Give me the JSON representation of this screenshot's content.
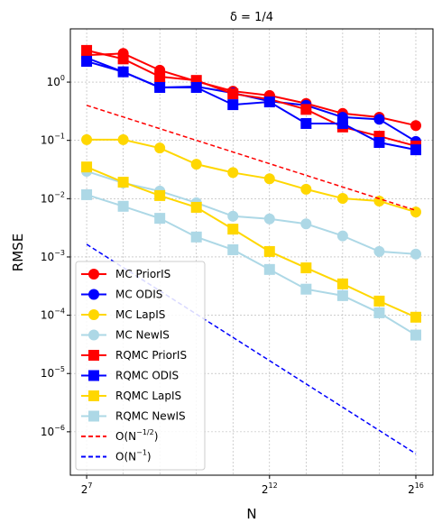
{
  "chart_data": {
    "type": "line",
    "title": "δ = 1/4",
    "xlabel": "N",
    "ylabel": "RMSE",
    "xlog": 2,
    "ylog": 10,
    "xlim": [
      94,
      90700
    ],
    "ylim": [
      1.8e-07,
      8.2
    ],
    "xticks": [
      {
        "value": 128,
        "label": "2^{7}"
      },
      {
        "value": 4096,
        "label": "2^{12}"
      },
      {
        "value": 65536,
        "label": "2^{16}"
      }
    ],
    "xgrid": [
      128,
      256,
      512,
      1024,
      2048,
      4096,
      8192,
      16384,
      32768,
      65536
    ],
    "yticks": [
      {
        "value": 1e-06,
        "label": "10^{−6}"
      },
      {
        "value": 1e-05,
        "label": "10^{−5}"
      },
      {
        "value": 0.0001,
        "label": "10^{−4}"
      },
      {
        "value": 0.001,
        "label": "10^{−3}"
      },
      {
        "value": 0.01,
        "label": "10^{−2}"
      },
      {
        "value": 0.1,
        "label": "10^{−1}"
      },
      {
        "value": 1,
        "label": "10^{0}"
      }
    ],
    "grid": true,
    "legend": "lower left",
    "x": [
      128,
      256,
      512,
      1024,
      2048,
      4096,
      8192,
      16384,
      32768,
      65536
    ],
    "series": [
      {
        "name": "MC PriorIS",
        "color": "#ff0000",
        "marker": "circle",
        "values": [
          2.9,
          3.1,
          1.6,
          1.03,
          0.7,
          0.59,
          0.43,
          0.29,
          0.25,
          0.18
        ]
      },
      {
        "name": "MC ODIS",
        "color": "#0000ff",
        "marker": "circle",
        "values": [
          2.6,
          1.5,
          0.81,
          0.84,
          0.65,
          0.47,
          0.4,
          0.25,
          0.23,
          0.096
        ]
      },
      {
        "name": "MC LapIS",
        "color": "#ffd700",
        "marker": "circle",
        "values": [
          0.103,
          0.103,
          0.074,
          0.039,
          0.028,
          0.022,
          0.0145,
          0.0101,
          0.0091,
          0.0059
        ]
      },
      {
        "name": "MC NewIS",
        "color": "#add8e6",
        "marker": "circle",
        "values": [
          0.0295,
          0.0186,
          0.0135,
          0.0085,
          0.005,
          0.0045,
          0.0037,
          0.0023,
          0.00124,
          0.00112
        ]
      },
      {
        "name": "RQMC PriorIS",
        "color": "#ff0000",
        "marker": "square",
        "values": [
          3.5,
          2.5,
          1.24,
          1.07,
          0.63,
          0.51,
          0.34,
          0.17,
          0.118,
          0.08
        ]
      },
      {
        "name": "RQMC ODIS",
        "color": "#0000ff",
        "marker": "square",
        "values": [
          2.27,
          1.5,
          0.81,
          0.81,
          0.41,
          0.457,
          0.195,
          0.195,
          0.092,
          0.069
        ]
      },
      {
        "name": "RQMC LapIS",
        "color": "#ffd700",
        "marker": "square",
        "values": [
          0.035,
          0.0192,
          0.0113,
          0.0071,
          0.003,
          0.00124,
          0.00065,
          0.000345,
          0.000175,
          9.25e-05
        ]
      },
      {
        "name": "RQMC NewIS",
        "color": "#add8e6",
        "marker": "square",
        "values": [
          0.0117,
          0.0074,
          0.0046,
          0.0022,
          0.00133,
          0.00061,
          0.00028,
          0.000217,
          0.00011,
          4.57e-05
        ]
      },
      {
        "name": "O(N^{−1/2})",
        "color": "#ff0000",
        "linestyle": "dashed",
        "x": [
          128,
          65536
        ],
        "values": [
          0.4,
          0.0063
        ]
      },
      {
        "name": "O(N^{−1})",
        "color": "#0000ff",
        "linestyle": "dashed",
        "x": [
          128,
          65536
        ],
        "values": [
          0.00165,
          4.2e-07
        ]
      }
    ]
  }
}
